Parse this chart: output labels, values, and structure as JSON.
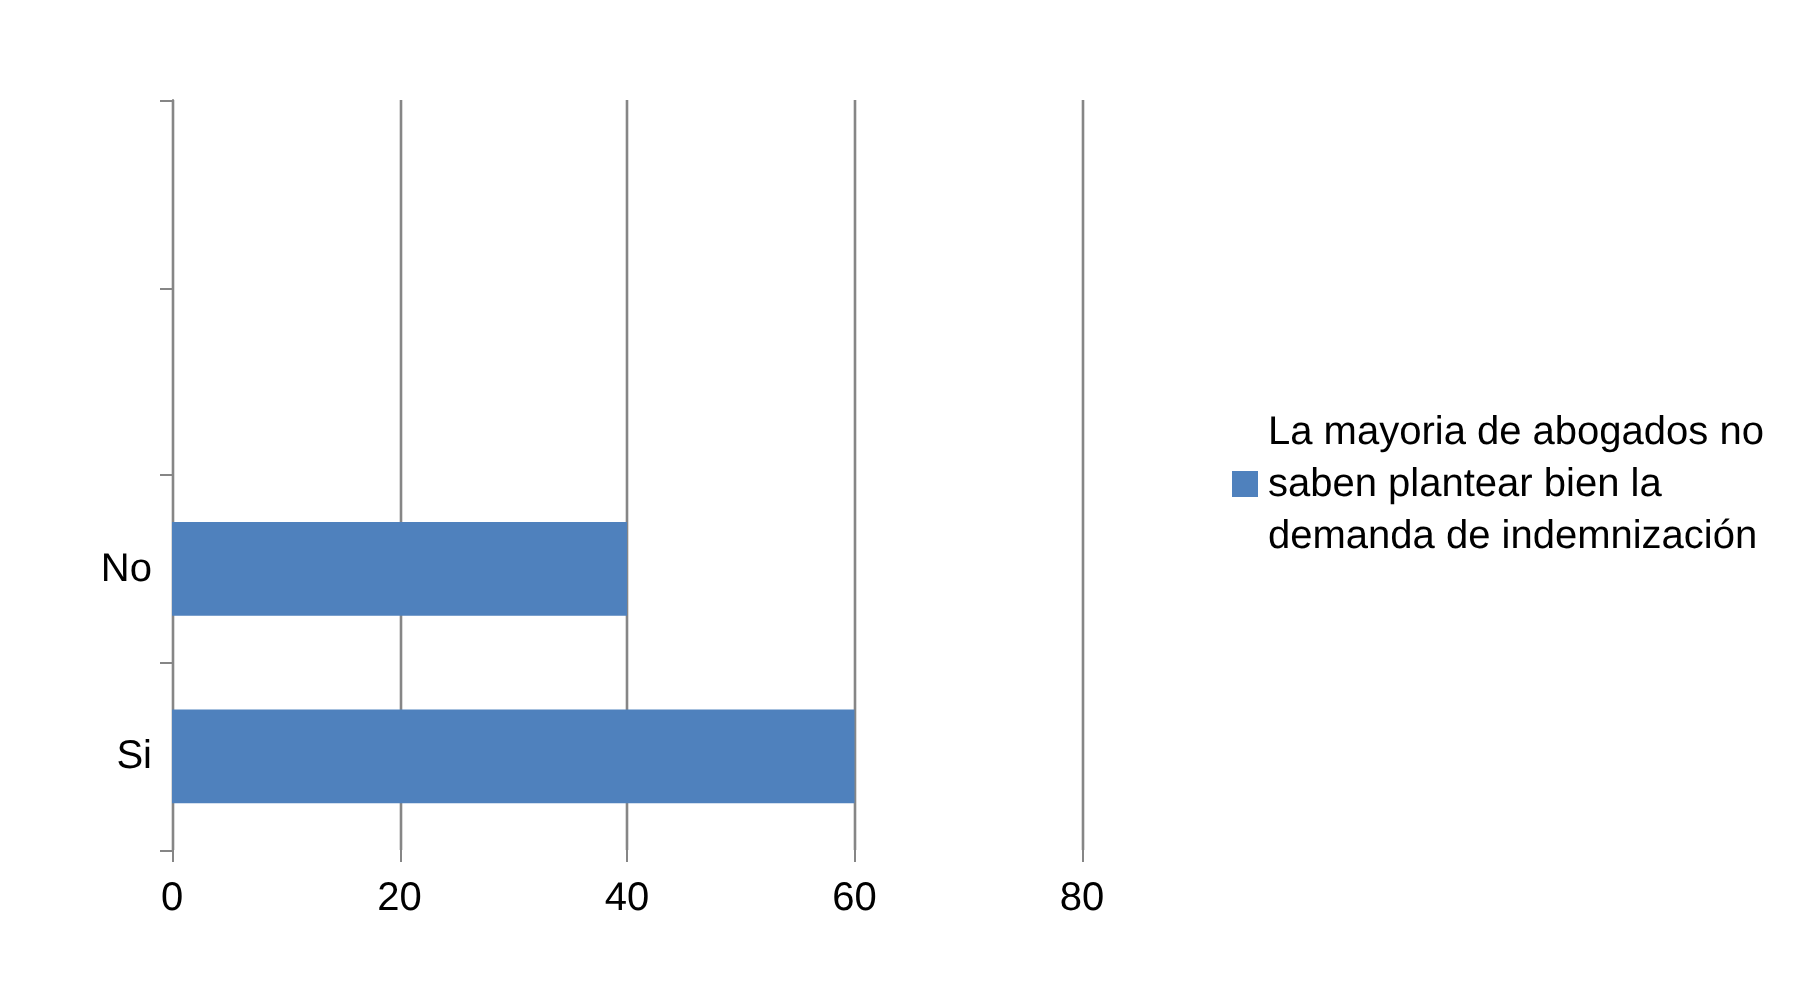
{
  "chart_data": {
    "type": "bar",
    "orientation": "horizontal",
    "categories": [
      null,
      null,
      "No",
      "Si"
    ],
    "series": [
      {
        "name": "La mayoria de abogados no saben plantear bien la demanda de indemnización",
        "color": "#4f81bd",
        "values": [
          null,
          null,
          40,
          60
        ]
      }
    ],
    "xlim": [
      0,
      80
    ],
    "xticks": [
      0,
      20,
      40,
      60,
      80
    ],
    "grid": "x",
    "legend": "right"
  }
}
